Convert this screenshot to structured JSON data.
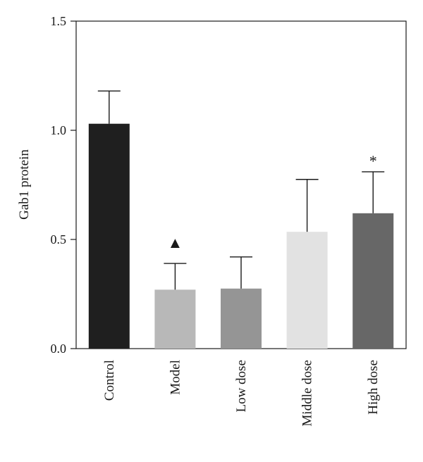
{
  "chart_data": {
    "type": "bar",
    "categories": [
      "Control",
      "Model",
      "Low dose",
      "Middle dose",
      "High dose"
    ],
    "values": [
      1.03,
      0.27,
      0.275,
      0.535,
      0.62
    ],
    "error_upper": [
      1.18,
      0.39,
      0.42,
      0.775,
      0.81
    ],
    "bar_colors": [
      "#1f1f1f",
      "#b8b8b8",
      "#959595",
      "#e2e2e2",
      "#676767"
    ],
    "annotations": [
      "",
      "▲",
      "",
      "",
      "*"
    ],
    "ylabel": "Gab1 protein",
    "xlabel": "",
    "ylim": [
      0,
      1.5
    ],
    "yticks": [
      "0.0",
      "0.5",
      "1.0",
      "1.5"
    ],
    "grid": false,
    "frame": "box"
  }
}
